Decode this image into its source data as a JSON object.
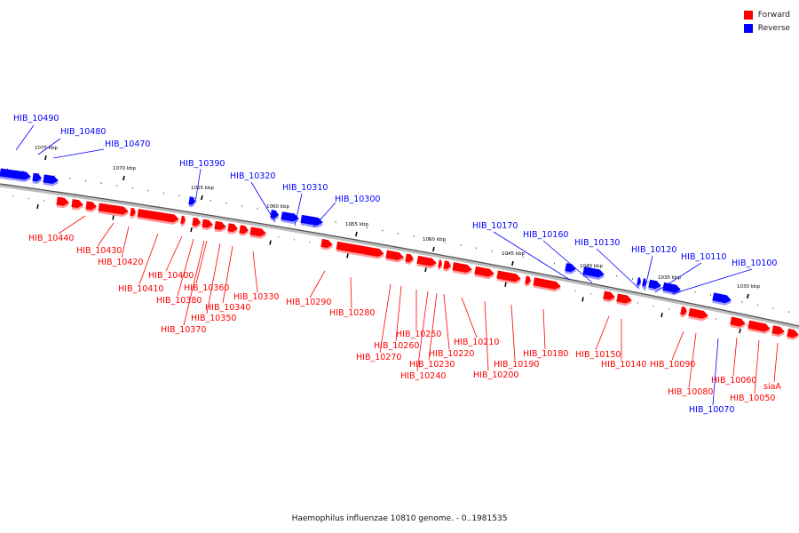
{
  "legend": {
    "forward_label": "Forward",
    "reverse_label": "Reverse",
    "forward_color": "#ff0000",
    "reverse_color": "#0000ff"
  },
  "caption": "Haemophilus influenzae 10810 genome. - 0..1981535",
  "ticks": [
    "1075 kbp",
    "1070 kbp",
    "1065 kbp",
    "1060 kbp",
    "1055 kbp",
    "1050 kbp",
    "1045 kbp",
    "1040 kbp",
    "1035 kbp",
    "1030 kbp"
  ],
  "genes": [
    {
      "label": "HIB_10490",
      "strand": "reverse"
    },
    {
      "label": "HIB_10480",
      "strand": "reverse"
    },
    {
      "label": "HIB_10470",
      "strand": "reverse"
    },
    {
      "label": "HIB_10390",
      "strand": "reverse"
    },
    {
      "label": "HIB_10320",
      "strand": "reverse"
    },
    {
      "label": "HIB_10310",
      "strand": "reverse"
    },
    {
      "label": "HIB_10300",
      "strand": "reverse"
    },
    {
      "label": "HIB_10170",
      "strand": "reverse"
    },
    {
      "label": "HIB_10160",
      "strand": "reverse"
    },
    {
      "label": "HIB_10130",
      "strand": "reverse"
    },
    {
      "label": "HIB_10120",
      "strand": "reverse"
    },
    {
      "label": "HIB_10110",
      "strand": "reverse"
    },
    {
      "label": "HIB_10100",
      "strand": "reverse"
    },
    {
      "label": "HIB_10070",
      "strand": "reverse"
    },
    {
      "label": "HIB_10440",
      "strand": "forward"
    },
    {
      "label": "HIB_10430",
      "strand": "forward"
    },
    {
      "label": "HIB_10420",
      "strand": "forward"
    },
    {
      "label": "HIB_10410",
      "strand": "forward"
    },
    {
      "label": "HIB_10400",
      "strand": "forward"
    },
    {
      "label": "HIB_10380",
      "strand": "forward"
    },
    {
      "label": "HIB_10370",
      "strand": "forward"
    },
    {
      "label": "HIB_10360",
      "strand": "forward"
    },
    {
      "label": "HIB_10350",
      "strand": "forward"
    },
    {
      "label": "HIB_10340",
      "strand": "forward"
    },
    {
      "label": "HIB_10330",
      "strand": "forward"
    },
    {
      "label": "HIB_10290",
      "strand": "forward"
    },
    {
      "label": "HIB_10280",
      "strand": "forward"
    },
    {
      "label": "HIB_10270",
      "strand": "forward"
    },
    {
      "label": "HIB_10260",
      "strand": "forward"
    },
    {
      "label": "HIB_10250",
      "strand": "forward"
    },
    {
      "label": "HIB_10240",
      "strand": "forward"
    },
    {
      "label": "HIB_10230",
      "strand": "forward"
    },
    {
      "label": "HIB_10220",
      "strand": "forward"
    },
    {
      "label": "HIB_10210",
      "strand": "forward"
    },
    {
      "label": "HIB_10200",
      "strand": "forward"
    },
    {
      "label": "HIB_10190",
      "strand": "forward"
    },
    {
      "label": "HIB_10180",
      "strand": "forward"
    },
    {
      "label": "HIB_10150",
      "strand": "forward"
    },
    {
      "label": "HIB_10140",
      "strand": "forward"
    },
    {
      "label": "HIB_10090",
      "strand": "forward"
    },
    {
      "label": "HIB_10080",
      "strand": "forward"
    },
    {
      "label": "HIB_10060",
      "strand": "forward"
    },
    {
      "label": "HIB_10050",
      "strand": "forward"
    },
    {
      "label": "siaA",
      "strand": "forward"
    }
  ]
}
